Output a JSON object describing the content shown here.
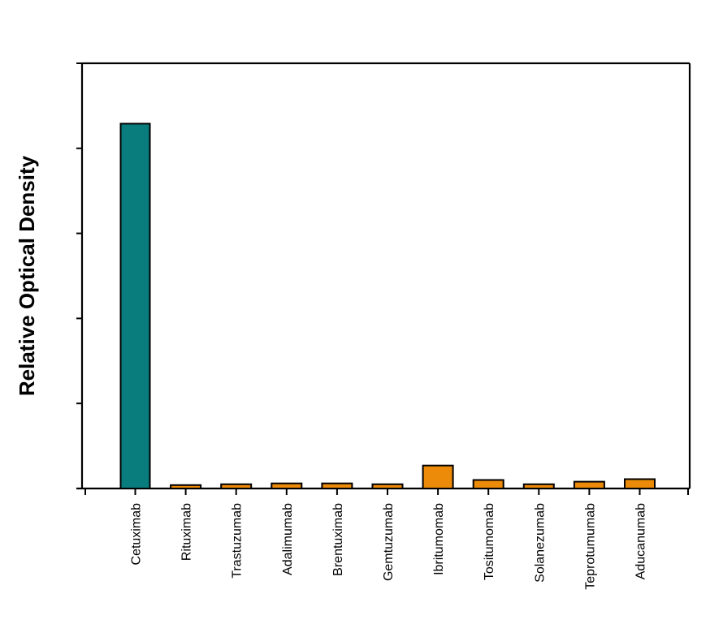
{
  "chart_data": {
    "type": "bar",
    "title": "",
    "xlabel": "",
    "ylabel": "Relative Optical Density",
    "ylim": [
      0,
      5
    ],
    "y_ticks": [
      0,
      1,
      2,
      3,
      4,
      5
    ],
    "y_tick_labels_visible": false,
    "grid": false,
    "legend": null,
    "categories": [
      "Cetuximab",
      "Rituximab",
      "Trastuzumab",
      "Adalimumab",
      "Brentuximab",
      "Gemtuzumab",
      "Ibritumomab",
      "Tositumomab",
      "Solanezumab",
      "Teprotumumab",
      "Aducanumab"
    ],
    "values": [
      4.29,
      0.04,
      0.05,
      0.06,
      0.06,
      0.05,
      0.27,
      0.1,
      0.05,
      0.08,
      0.11
    ],
    "colors": [
      "#097d7d",
      "#ec8a0a",
      "#ec8a0a",
      "#ec8a0a",
      "#ec8a0a",
      "#ec8a0a",
      "#ec8a0a",
      "#ec8a0a",
      "#ec8a0a",
      "#ec8a0a",
      "#ec8a0a"
    ]
  },
  "style": {
    "highlight_color": "#097d7d",
    "bar_color": "#ec8a0a",
    "axis_color": "#000000"
  }
}
